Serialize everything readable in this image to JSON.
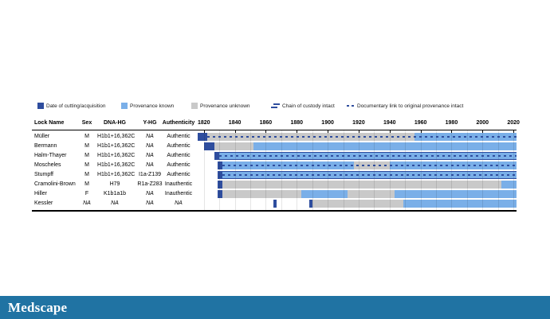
{
  "brand": {
    "logo_text": "Medscape"
  },
  "colors": {
    "acquisition": "#2e4d9e",
    "provenance_known": "#7aafe8",
    "provenance_unknown": "#c9c9c9",
    "custody_line": "#2e4d9e",
    "footer_bar": "#2073a3"
  },
  "legend": {
    "items": [
      {
        "swatch": "square-dark-blue",
        "label": "Date of cutting/acquisition"
      },
      {
        "swatch": "square-light-blue",
        "label": "Provenance known"
      },
      {
        "swatch": "square-gray",
        "label": "Provenance unknown"
      },
      {
        "swatch": "double-solid-line",
        "label": "Chain of custody intact"
      },
      {
        "swatch": "dashed-line",
        "label": "Documentary link to original provenance intact"
      }
    ]
  },
  "table": {
    "headers": [
      "Lock Name",
      "Sex",
      "DNA-HG",
      "Y-HG",
      "Authenticity"
    ]
  },
  "chart_data": {
    "type": "gantt-timeline",
    "x_domain": [
      1816,
      2022
    ],
    "x_ticks": [
      1820,
      1840,
      1860,
      1880,
      1900,
      1920,
      1940,
      1960,
      1980,
      2000,
      2020
    ],
    "gridline_step_years": 10,
    "legend_position": "top",
    "rows": [
      {
        "lock": "Müller",
        "sex": "M",
        "dna_hg": "H1b1+16,362C",
        "y_hg": "NA",
        "authenticity": "Authentic",
        "acquisition": [
          [
            1816,
            1822
          ]
        ],
        "segments": [
          {
            "status": "unknown",
            "from": 1822,
            "to": 1956
          },
          {
            "status": "known",
            "from": 1956,
            "to": 2022
          }
        ],
        "documentary_link": [
          1822,
          2022
        ],
        "chain_of_custody": false
      },
      {
        "lock": "Bermann",
        "sex": "M",
        "dna_hg": "H1b1+16,362C",
        "y_hg": "NA",
        "authenticity": "Authentic",
        "acquisition": [
          [
            1820,
            1827
          ]
        ],
        "segments": [
          {
            "status": "unknown",
            "from": 1827,
            "to": 1852
          },
          {
            "status": "known",
            "from": 1852,
            "to": 2022
          }
        ],
        "documentary_link": null,
        "chain_of_custody": false
      },
      {
        "lock": "Halm-Thayer",
        "sex": "M",
        "dna_hg": "H1b1+16,362C",
        "y_hg": "NA",
        "authenticity": "Authentic",
        "acquisition": [
          [
            1827,
            1830
          ]
        ],
        "segments": [
          {
            "status": "known",
            "from": 1830,
            "to": 2022
          }
        ],
        "documentary_link": [
          1830,
          2022
        ],
        "chain_of_custody": true
      },
      {
        "lock": "Moscheles",
        "sex": "M",
        "dna_hg": "H1b1+16,362C",
        "y_hg": "NA",
        "authenticity": "Authentic",
        "acquisition": [
          [
            1829,
            1832
          ]
        ],
        "segments": [
          {
            "status": "known",
            "from": 1832,
            "to": 1917
          },
          {
            "status": "unknown",
            "from": 1917,
            "to": 1940
          },
          {
            "status": "known",
            "from": 1940,
            "to": 2022
          }
        ],
        "documentary_link": [
          1832,
          2022
        ],
        "chain_of_custody": false
      },
      {
        "lock": "Stumpff",
        "sex": "M",
        "dna_hg": "H1b1+16,362C",
        "y_hg": "I1a-Z139",
        "authenticity": "Authentic",
        "acquisition": [
          [
            1829,
            1832
          ]
        ],
        "segments": [
          {
            "status": "known",
            "from": 1832,
            "to": 2022
          }
        ],
        "documentary_link": [
          1832,
          2022
        ],
        "chain_of_custody": true
      },
      {
        "lock": "Cramolini-Brown",
        "sex": "M",
        "dna_hg": "H79",
        "y_hg": "R1a-Z283",
        "authenticity": "Inauthentic",
        "acquisition": [
          [
            1829,
            1832
          ]
        ],
        "segments": [
          {
            "status": "unknown",
            "from": 1832,
            "to": 2012
          },
          {
            "status": "known",
            "from": 2012,
            "to": 2022
          }
        ],
        "documentary_link": null,
        "chain_of_custody": false
      },
      {
        "lock": "Hiller",
        "sex": "F",
        "dna_hg": "K1b1a1b",
        "y_hg": "NA",
        "authenticity": "Inauthentic",
        "acquisition": [
          [
            1829,
            1832
          ]
        ],
        "segments": [
          {
            "status": "unknown",
            "from": 1832,
            "to": 1883
          },
          {
            "status": "known",
            "from": 1883,
            "to": 1913
          },
          {
            "status": "unknown",
            "from": 1913,
            "to": 1943
          },
          {
            "status": "known",
            "from": 1943,
            "to": 2022
          }
        ],
        "documentary_link": null,
        "chain_of_custody": false
      },
      {
        "lock": "Kessler",
        "sex": "NA",
        "dna_hg": "NA",
        "y_hg": "NA",
        "authenticity": "NA",
        "acquisition": [
          [
            1865,
            1867
          ],
          [
            1888,
            1890
          ]
        ],
        "segments": [
          {
            "status": "unknown",
            "from": 1890,
            "to": 1949
          },
          {
            "status": "known",
            "from": 1949,
            "to": 2022
          }
        ],
        "documentary_link": null,
        "chain_of_custody": false
      }
    ]
  }
}
